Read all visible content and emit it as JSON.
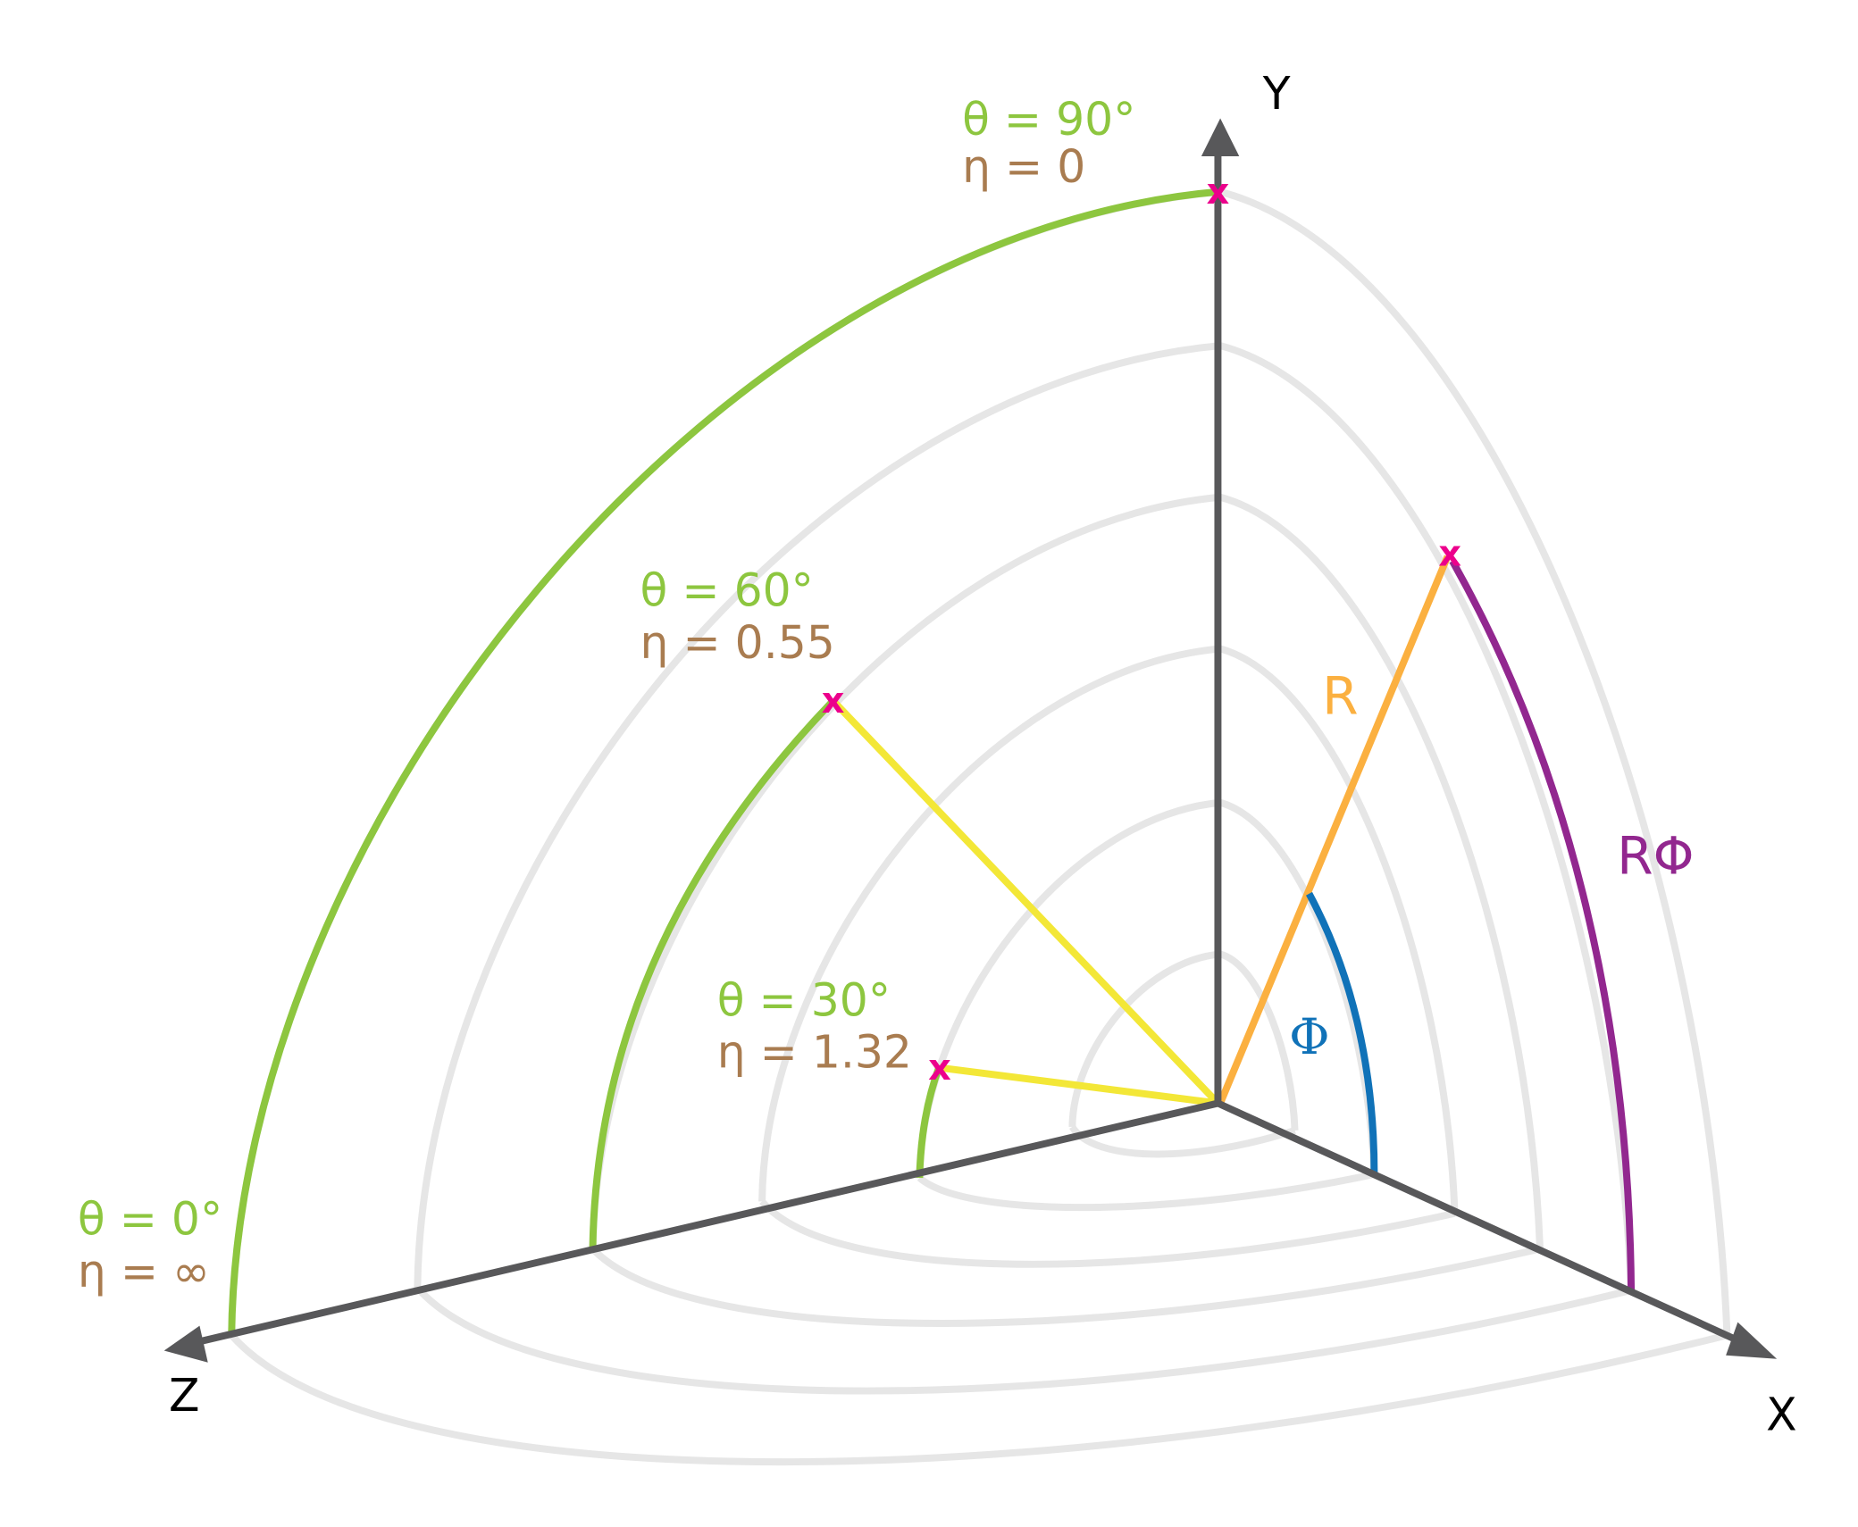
{
  "axes": {
    "x_label": "X",
    "y_label": "Y",
    "z_label": "Z"
  },
  "annotations": [
    {
      "id": "theta90",
      "theta": "θ = 90°",
      "eta": "η = 0"
    },
    {
      "id": "theta60",
      "theta": "θ = 60°",
      "eta": "η = 0.55"
    },
    {
      "id": "theta30",
      "theta": "θ = 30°",
      "eta": "η = 1.32"
    },
    {
      "id": "theta0",
      "theta": "θ = 0°",
      "eta": "η = ∞"
    }
  ],
  "labels": {
    "radius": "R",
    "arc_length": "RΦ",
    "angle": "Φ"
  },
  "marker_symbol": "x",
  "colors": {
    "axis": "#58585a",
    "shell": "#e6e6e6",
    "theta_arc": "#8dc63f",
    "eta_text": "#a97c50",
    "yellow_line": "#f3e737",
    "radius": "#fbb040",
    "arc_length": "#92278f",
    "angle": "#1072b8",
    "marker": "#ec008c"
  }
}
